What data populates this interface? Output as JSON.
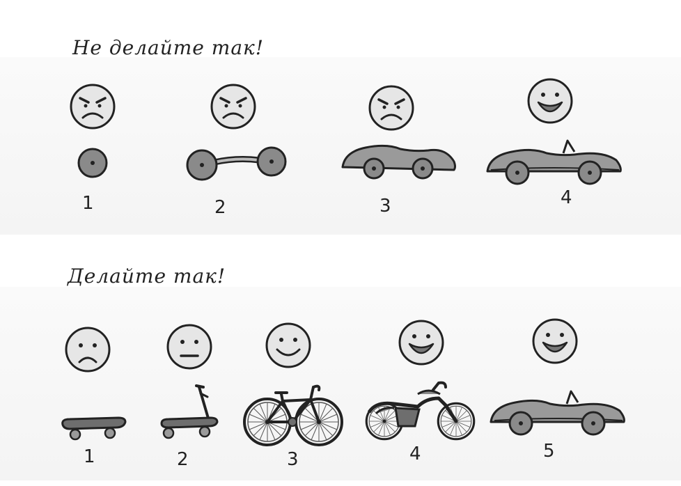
{
  "headings": {
    "dont": "Не делайте так!",
    "do": "Делайте так!"
  },
  "rows": {
    "dont": {
      "steps": [
        {
          "label": "1",
          "mood": "angry",
          "item": "wheel"
        },
        {
          "label": "2",
          "mood": "angry",
          "item": "axle"
        },
        {
          "label": "3",
          "mood": "angry",
          "item": "car-body"
        },
        {
          "label": "4",
          "mood": "happy",
          "item": "car"
        }
      ]
    },
    "do": {
      "steps": [
        {
          "label": "1",
          "mood": "sad",
          "item": "skateboard"
        },
        {
          "label": "2",
          "mood": "neutral",
          "item": "scooter"
        },
        {
          "label": "3",
          "mood": "smile",
          "item": "bicycle"
        },
        {
          "label": "4",
          "mood": "happy",
          "item": "motorcycle"
        },
        {
          "label": "5",
          "mood": "happy",
          "item": "car"
        }
      ]
    }
  },
  "colors": {
    "ink": "#222222",
    "fill": "#9a9a9a",
    "face": "#e6e6e6"
  }
}
